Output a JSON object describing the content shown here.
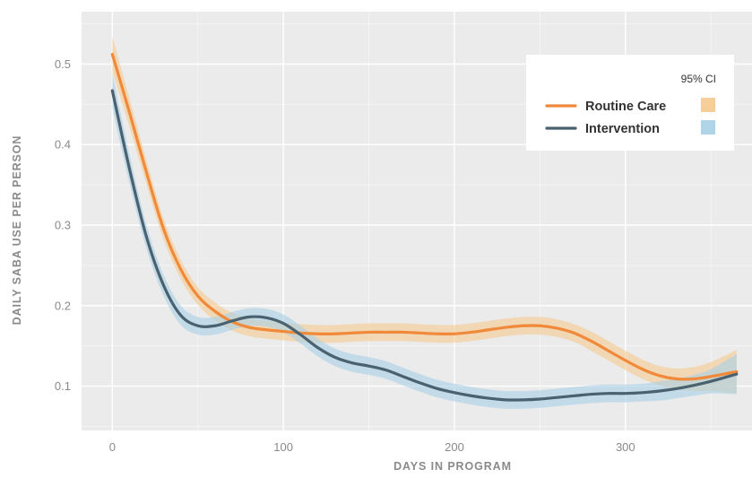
{
  "chart_data": {
    "type": "line",
    "xlabel": "DAYS IN PROGRAM",
    "ylabel": "DAILY SABA USE PER PERSON",
    "xlim": [
      -18,
      374
    ],
    "ylim": [
      0.045,
      0.565
    ],
    "x_ticks": [
      0,
      100,
      200,
      300
    ],
    "y_ticks": [
      0.1,
      0.2,
      0.3,
      0.4,
      0.5
    ],
    "x_tick_labels": [
      "0",
      "100",
      "200",
      "300"
    ],
    "y_tick_labels": [
      "0.1",
      "0.2",
      "0.3",
      "0.4",
      "0.5"
    ],
    "grid": true,
    "legend_position": "top-right",
    "legend_ci_title": "95% CI",
    "series": [
      {
        "name": "Routine Care",
        "color": "#f08a3a",
        "band_color": "#f5c98e",
        "x": [
          0,
          10,
          20,
          30,
          40,
          50,
          60,
          70,
          80,
          90,
          100,
          110,
          120,
          130,
          140,
          150,
          160,
          170,
          180,
          190,
          200,
          210,
          220,
          230,
          240,
          250,
          260,
          270,
          280,
          290,
          300,
          310,
          320,
          330,
          340,
          350,
          365
        ],
        "y": [
          0.512,
          0.44,
          0.365,
          0.295,
          0.245,
          0.212,
          0.193,
          0.18,
          0.173,
          0.17,
          0.168,
          0.166,
          0.165,
          0.165,
          0.166,
          0.167,
          0.167,
          0.167,
          0.166,
          0.165,
          0.165,
          0.167,
          0.17,
          0.173,
          0.175,
          0.175,
          0.172,
          0.166,
          0.156,
          0.144,
          0.132,
          0.121,
          0.113,
          0.109,
          0.109,
          0.112,
          0.118
        ],
        "ci_halfwidth": [
          0.022,
          0.018,
          0.015,
          0.013,
          0.012,
          0.011,
          0.011,
          0.011,
          0.011,
          0.011,
          0.011,
          0.011,
          0.011,
          0.011,
          0.011,
          0.011,
          0.011,
          0.011,
          0.011,
          0.011,
          0.011,
          0.011,
          0.011,
          0.011,
          0.011,
          0.011,
          0.011,
          0.011,
          0.012,
          0.012,
          0.012,
          0.012,
          0.012,
          0.013,
          0.015,
          0.018,
          0.027
        ]
      },
      {
        "name": "Intervention",
        "color": "#4a6270",
        "band_color": "#a8d0e6",
        "x": [
          0,
          10,
          20,
          30,
          40,
          50,
          60,
          70,
          80,
          90,
          100,
          110,
          120,
          130,
          140,
          150,
          160,
          170,
          180,
          190,
          200,
          210,
          220,
          230,
          240,
          250,
          260,
          270,
          280,
          290,
          300,
          310,
          320,
          330,
          340,
          350,
          365
        ],
        "y": [
          0.467,
          0.37,
          0.285,
          0.225,
          0.188,
          0.175,
          0.175,
          0.181,
          0.186,
          0.185,
          0.178,
          0.164,
          0.148,
          0.136,
          0.129,
          0.125,
          0.12,
          0.112,
          0.104,
          0.097,
          0.092,
          0.088,
          0.085,
          0.083,
          0.083,
          0.084,
          0.086,
          0.088,
          0.09,
          0.091,
          0.091,
          0.092,
          0.094,
          0.097,
          0.101,
          0.106,
          0.115
        ],
        "ci_halfwidth": [
          0.022,
          0.018,
          0.015,
          0.013,
          0.012,
          0.011,
          0.011,
          0.011,
          0.011,
          0.011,
          0.011,
          0.011,
          0.011,
          0.011,
          0.011,
          0.011,
          0.011,
          0.011,
          0.011,
          0.011,
          0.011,
          0.011,
          0.011,
          0.011,
          0.011,
          0.011,
          0.011,
          0.011,
          0.011,
          0.011,
          0.011,
          0.011,
          0.012,
          0.012,
          0.013,
          0.015,
          0.025
        ]
      }
    ]
  },
  "colors": {
    "panel_background": "#ebebeb",
    "grid_major": "#ffffff",
    "legend_background": "#ffffff"
  }
}
